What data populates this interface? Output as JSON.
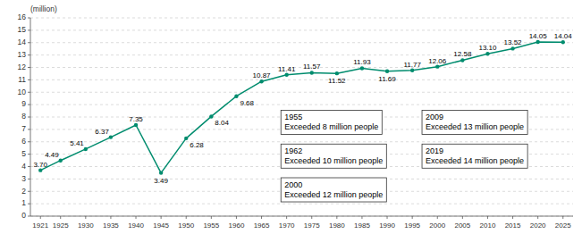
{
  "chart_data": {
    "type": "line",
    "x": [
      1921,
      1925,
      1930,
      1935,
      1940,
      1945,
      1950,
      1955,
      1960,
      1965,
      1970,
      1975,
      1980,
      1985,
      1990,
      1995,
      2000,
      2005,
      2010,
      2015,
      2020,
      2025
    ],
    "values": [
      3.7,
      4.49,
      5.41,
      6.37,
      7.35,
      3.49,
      6.28,
      8.04,
      9.68,
      10.87,
      11.41,
      11.57,
      11.52,
      11.93,
      11.69,
      11.77,
      12.06,
      12.58,
      13.1,
      13.52,
      14.05,
      14.04
    ],
    "value_labels": [
      "3.70",
      "4.49",
      "5.41",
      "6.37",
      "7.35",
      "3.49",
      "6.28",
      "8.04",
      "9.68",
      "10.87",
      "11.41",
      "11.57",
      "11.52",
      "11.93",
      "11.69",
      "11.77",
      "12.06",
      "12.58",
      "13.10",
      "13.52",
      "14.05",
      "14.04"
    ],
    "color": "#008c6e",
    "marker": "circle",
    "data_labels": true,
    "grid": true,
    "ylabel": "(million)",
    "ylim": [
      0,
      16
    ],
    "yticks": [
      0,
      1,
      2,
      3,
      4,
      5,
      6,
      7,
      8,
      9,
      10,
      11,
      12,
      13,
      14,
      15,
      16
    ],
    "xlim": [
      1919,
      2027
    ],
    "xticks": [
      1921,
      1925,
      1930,
      1935,
      1940,
      1945,
      1950,
      1955,
      1960,
      1965,
      1970,
      1975,
      1980,
      1985,
      1990,
      1995,
      2000,
      2005,
      2010,
      2015,
      2020,
      2025
    ],
    "annotations": [
      "1955\nExceeded 8 million people",
      "1962\nExceeded 10 million people",
      "2000\nExceeded 12 million people",
      "2009\nExceeded 13 million people",
      "2019\nExceeded 14 million people"
    ]
  }
}
